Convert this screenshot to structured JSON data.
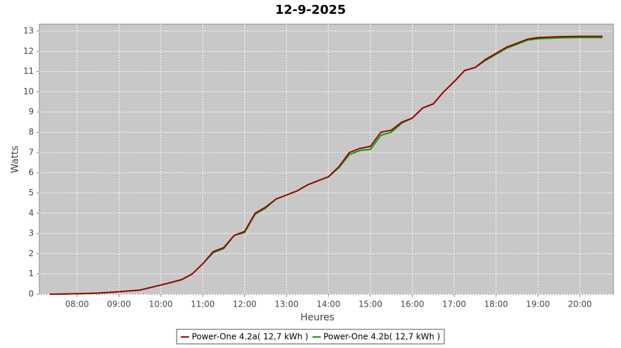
{
  "chart_data": {
    "type": "line",
    "title": "12-9-2025",
    "x_label": "Heures",
    "y_label": "Watts",
    "x": [
      7.35,
      7.5,
      8,
      8.5,
      9,
      9.5,
      10,
      10.25,
      10.5,
      10.75,
      11,
      11.25,
      11.5,
      11.75,
      12,
      12.25,
      12.5,
      12.75,
      13,
      13.25,
      13.5,
      13.75,
      14,
      14.25,
      14.5,
      14.75,
      15,
      15.25,
      15.5,
      15.75,
      16,
      16.25,
      16.5,
      16.75,
      17,
      17.25,
      17.5,
      17.75,
      18,
      18.25,
      18.5,
      18.75,
      19,
      19.5,
      20,
      20.54
    ],
    "series": [
      {
        "name": "Power-One 4.2a( 12,7 kWh )",
        "color": "#a00000",
        "values": [
          0,
          0,
          0.02,
          0.05,
          0.12,
          0.2,
          0.45,
          0.58,
          0.72,
          1.0,
          1.5,
          2.1,
          2.3,
          2.9,
          3.1,
          4.0,
          4.3,
          4.7,
          4.9,
          5.1,
          5.4,
          5.6,
          5.8,
          6.3,
          7.0,
          7.2,
          7.3,
          8.0,
          8.1,
          8.5,
          8.7,
          9.2,
          9.4,
          10.0,
          10.5,
          11.05,
          11.2,
          11.6,
          11.9,
          12.2,
          12.4,
          12.6,
          12.68,
          12.72,
          12.74,
          12.74
        ]
      },
      {
        "name": "Power-One 4.2b( 12,7 kWh )",
        "color": "#00a000",
        "values": [
          0,
          0,
          0.02,
          0.05,
          0.12,
          0.2,
          0.45,
          0.58,
          0.72,
          1.0,
          1.5,
          2.05,
          2.25,
          2.9,
          3.05,
          3.95,
          4.25,
          4.7,
          4.9,
          5.1,
          5.4,
          5.6,
          5.8,
          6.25,
          6.9,
          7.1,
          7.15,
          7.85,
          8.0,
          8.45,
          8.7,
          9.2,
          9.4,
          10.0,
          10.5,
          11.05,
          11.2,
          11.55,
          11.85,
          12.15,
          12.35,
          12.55,
          12.62,
          12.66,
          12.68,
          12.68
        ]
      }
    ],
    "xlim": [
      7.1,
      20.8
    ],
    "xticks": [
      {
        "value": 8,
        "label": "08:00"
      },
      {
        "value": 9,
        "label": "09:00"
      },
      {
        "value": 10,
        "label": "10:00"
      },
      {
        "value": 11,
        "label": "11:00"
      },
      {
        "value": 12,
        "label": "12:00"
      },
      {
        "value": 13,
        "label": "13:00"
      },
      {
        "value": 14,
        "label": "14:00"
      },
      {
        "value": 15,
        "label": "15:00"
      },
      {
        "value": 16,
        "label": "16:00"
      },
      {
        "value": 17,
        "label": "17:00"
      },
      {
        "value": 18,
        "label": "18:00"
      },
      {
        "value": 19,
        "label": "19:00"
      },
      {
        "value": 20,
        "label": "20:00"
      }
    ],
    "ylim": [
      0,
      13.34
    ],
    "yticks": [
      0,
      1,
      2,
      3,
      4,
      5,
      6,
      7,
      8,
      9,
      10,
      11,
      12,
      13
    ],
    "grid": true,
    "legend": "bottom"
  }
}
